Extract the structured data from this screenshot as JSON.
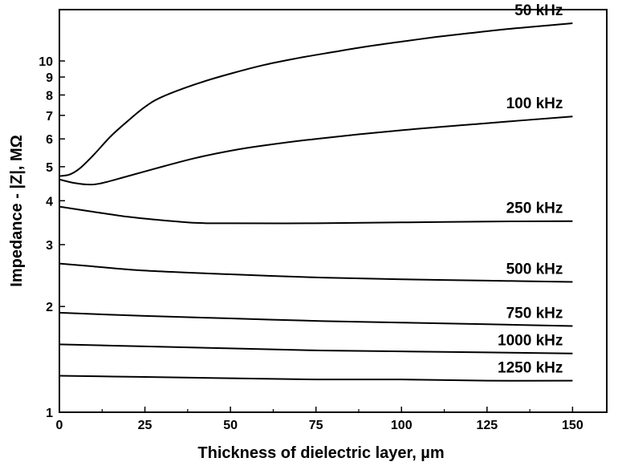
{
  "chart_data": {
    "type": "line",
    "title": "",
    "xlabel": "Thickness of dielectric layer, µm",
    "ylabel": "Impedance - |Z|, MΩ",
    "xlim": [
      0,
      160
    ],
    "ylim": [
      1,
      14
    ],
    "yscale": "log",
    "grid": false,
    "legend": "inline labels at right end of each curve",
    "x_ticks": [
      "0",
      "25",
      "50",
      "75",
      "100",
      "125",
      "150"
    ],
    "y_ticks": [
      "1",
      "2",
      "3",
      "4",
      "5",
      "6",
      "7",
      "8",
      "9",
      "10"
    ],
    "series": [
      {
        "name": "50 kHz",
        "x": [
          0,
          3,
          6,
          10,
          15,
          20,
          25,
          30,
          40,
          50,
          60,
          70,
          80,
          90,
          100,
          110,
          120,
          130,
          140,
          150
        ],
        "y": [
          4.7,
          4.75,
          4.95,
          5.4,
          6.1,
          6.75,
          7.4,
          7.9,
          8.6,
          9.2,
          9.75,
          10.2,
          10.6,
          11.0,
          11.35,
          11.7,
          12.0,
          12.3,
          12.55,
          12.8
        ]
      },
      {
        "name": "100 kHz",
        "x": [
          0,
          4,
          8,
          12,
          20,
          30,
          40,
          50,
          60,
          75,
          100,
          125,
          150
        ],
        "y": [
          4.6,
          4.5,
          4.45,
          4.48,
          4.7,
          5.0,
          5.3,
          5.55,
          5.75,
          6.0,
          6.35,
          6.65,
          6.95
        ]
      },
      {
        "name": "250 kHz",
        "x": [
          0,
          10,
          20,
          30,
          40,
          50,
          75,
          100,
          125,
          150
        ],
        "y": [
          3.85,
          3.72,
          3.6,
          3.52,
          3.46,
          3.45,
          3.45,
          3.47,
          3.49,
          3.5
        ]
      },
      {
        "name": "500 kHz",
        "x": [
          0,
          10,
          25,
          50,
          75,
          100,
          125,
          150
        ],
        "y": [
          2.65,
          2.6,
          2.53,
          2.47,
          2.42,
          2.39,
          2.37,
          2.35
        ]
      },
      {
        "name": "750 kHz",
        "x": [
          0,
          25,
          50,
          75,
          100,
          125,
          150
        ],
        "y": [
          1.92,
          1.88,
          1.85,
          1.82,
          1.8,
          1.78,
          1.76
        ]
      },
      {
        "name": "1000 kHz",
        "x": [
          0,
          25,
          50,
          75,
          100,
          125,
          150
        ],
        "y": [
          1.56,
          1.54,
          1.52,
          1.5,
          1.49,
          1.48,
          1.47
        ]
      },
      {
        "name": "1250 kHz",
        "x": [
          0,
          25,
          50,
          75,
          100,
          125,
          150
        ],
        "y": [
          1.27,
          1.26,
          1.25,
          1.24,
          1.24,
          1.23,
          1.23
        ]
      }
    ]
  }
}
